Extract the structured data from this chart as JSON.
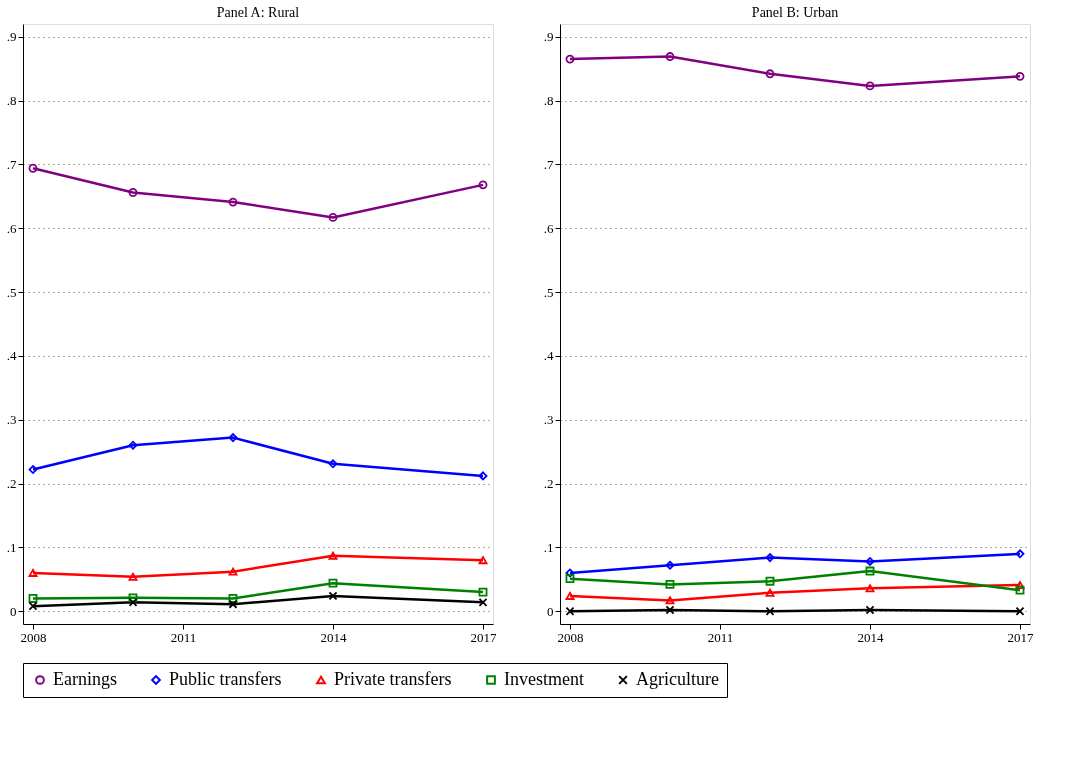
{
  "chart_data": [
    {
      "type": "line",
      "title": "Panel A: Rural",
      "x": [
        2008,
        2010,
        2012,
        2014,
        2017
      ],
      "xlim": [
        2007.8,
        2017.2
      ],
      "xticks": [
        2008,
        2011,
        2014,
        2017
      ],
      "ylim": [
        -0.02,
        0.92
      ],
      "yticks": [
        {
          "value": 0,
          "label": "0"
        },
        {
          "value": 0.1,
          "label": ".1"
        },
        {
          "value": 0.2,
          "label": ".2"
        },
        {
          "value": 0.3,
          "label": ".3"
        },
        {
          "value": 0.4,
          "label": ".4"
        },
        {
          "value": 0.5,
          "label": ".5"
        },
        {
          "value": 0.6,
          "label": ".6"
        },
        {
          "value": 0.7,
          "label": ".7"
        },
        {
          "value": 0.8,
          "label": ".8"
        },
        {
          "value": 0.9,
          "label": ".9"
        }
      ],
      "grid": "y",
      "legend": "bottom",
      "line_style": "solid",
      "series": [
        {
          "name": "Earnings",
          "color": "#800080",
          "marker": "circle",
          "values": [
            0.694,
            0.656,
            0.641,
            0.617,
            0.668
          ]
        },
        {
          "name": "Public transfers",
          "color": "#0000ff",
          "marker": "diamond",
          "values": [
            0.222,
            0.26,
            0.272,
            0.231,
            0.212
          ]
        },
        {
          "name": "Private transfers",
          "color": "#ff0000",
          "marker": "triangle",
          "values": [
            0.06,
            0.054,
            0.062,
            0.087,
            0.08
          ]
        },
        {
          "name": "Investment",
          "color": "#008000",
          "marker": "square",
          "values": [
            0.02,
            0.021,
            0.02,
            0.044,
            0.03
          ]
        },
        {
          "name": "Agriculture",
          "color": "#000000",
          "marker": "cross",
          "values": [
            0.008,
            0.014,
            0.011,
            0.024,
            0.014
          ]
        }
      ]
    },
    {
      "type": "line",
      "title": "Panel B: Urban",
      "x": [
        2008,
        2010,
        2012,
        2014,
        2017
      ],
      "xlim": [
        2007.8,
        2017.2
      ],
      "xticks": [
        2008,
        2011,
        2014,
        2017
      ],
      "ylim": [
        -0.02,
        0.92
      ],
      "yticks": [
        {
          "value": 0,
          "label": "0"
        },
        {
          "value": 0.1,
          "label": ".1"
        },
        {
          "value": 0.2,
          "label": ".2"
        },
        {
          "value": 0.3,
          "label": ".3"
        },
        {
          "value": 0.4,
          "label": ".4"
        },
        {
          "value": 0.5,
          "label": ".5"
        },
        {
          "value": 0.6,
          "label": ".6"
        },
        {
          "value": 0.7,
          "label": ".7"
        },
        {
          "value": 0.8,
          "label": ".8"
        },
        {
          "value": 0.9,
          "label": ".9"
        }
      ],
      "grid": "y",
      "legend": "bottom",
      "line_style": "solid",
      "series": [
        {
          "name": "Earnings",
          "color": "#800080",
          "marker": "circle",
          "values": [
            0.865,
            0.869,
            0.842,
            0.823,
            0.838
          ]
        },
        {
          "name": "Public transfers",
          "color": "#0000ff",
          "marker": "diamond",
          "values": [
            0.06,
            0.072,
            0.084,
            0.078,
            0.09
          ]
        },
        {
          "name": "Private transfers",
          "color": "#ff0000",
          "marker": "triangle",
          "values": [
            0.024,
            0.017,
            0.029,
            0.036,
            0.041
          ]
        },
        {
          "name": "Investment",
          "color": "#008000",
          "marker": "square",
          "values": [
            0.051,
            0.042,
            0.047,
            0.063,
            0.033
          ]
        },
        {
          "name": "Agriculture",
          "color": "#000000",
          "marker": "cross",
          "values": [
            0.0,
            0.002,
            0.0,
            0.002,
            0.0
          ]
        }
      ]
    }
  ]
}
